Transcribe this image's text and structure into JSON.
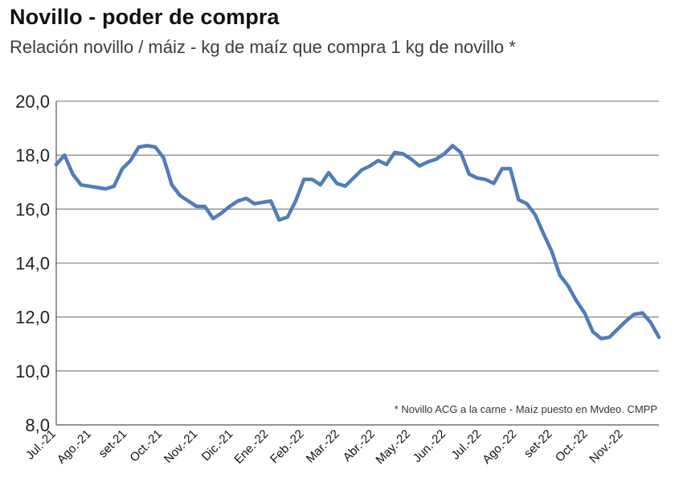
{
  "title": "Novillo - poder de compra",
  "subtitle": "Relación novillo / máiz - kg de maíz que compra 1 kg de novillo *",
  "footnote": "* Novillo ACG a la carne - Maíz puesto en Mvdeo. CMPP",
  "colors": {
    "line": "#4f7db8",
    "grid": "#8c8c8c",
    "axis": "#555555"
  },
  "chart_data": {
    "type": "line",
    "title": "Novillo - poder de compra",
    "subtitle": "Relación novillo / máiz - kg de maíz que compra 1 kg de novillo *",
    "xlabel": "",
    "ylabel": "",
    "ylim": [
      8,
      20
    ],
    "yticks": [
      "8,0",
      "10,0",
      "12,0",
      "14,0",
      "16,0",
      "18,0",
      "20,0"
    ],
    "grid": true,
    "xtick_labels": [
      "Jul.-21",
      "Ago.-21",
      "set-21",
      "Oct.-21",
      "Nov.-21",
      "Dic.-21",
      "Ene.-22",
      "Feb.-22",
      "Mar.-22",
      "Abr.-22",
      "May.-22",
      "Jun.-22",
      "Jul.-22",
      "Ago.-22",
      "set-22",
      "Oct.-22",
      "Nov.-22"
    ],
    "series": [
      {
        "values": [
          17.65,
          18.0,
          17.3,
          16.9,
          16.85,
          16.8,
          16.75,
          16.85,
          17.5,
          17.8,
          18.3,
          18.35,
          18.3,
          17.9,
          16.9,
          16.5,
          16.3,
          16.1,
          16.1,
          15.65,
          15.85,
          16.1,
          16.3,
          16.4,
          16.2,
          16.25,
          16.3,
          15.6,
          15.7,
          16.3,
          17.1,
          17.1,
          16.9,
          17.35,
          16.95,
          16.85,
          17.15,
          17.45,
          17.6,
          17.8,
          17.65,
          18.1,
          18.05,
          17.85,
          17.6,
          17.75,
          17.85,
          18.05,
          18.35,
          18.1,
          17.3,
          17.15,
          17.1,
          16.95,
          17.5,
          17.5,
          16.35,
          16.2,
          15.8,
          15.1,
          14.45,
          13.55,
          13.15,
          12.6,
          12.15,
          11.45,
          11.2,
          11.25,
          11.55,
          11.85,
          12.1,
          12.15,
          11.8,
          11.25
        ]
      }
    ]
  }
}
